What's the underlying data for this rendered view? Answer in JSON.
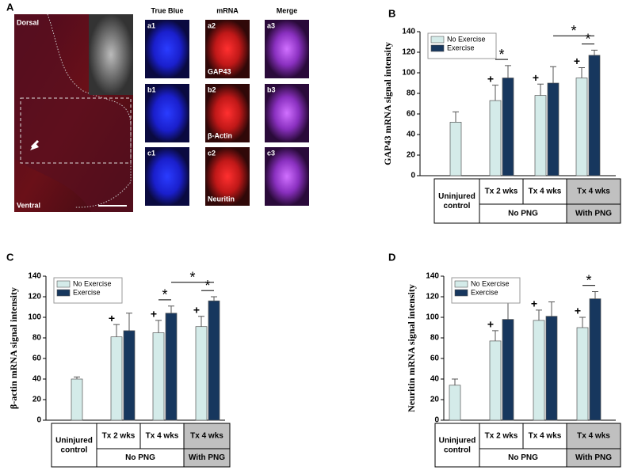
{
  "figure_a": {
    "panel": "A",
    "dorsal": "Dorsal",
    "ventral": "Ventral",
    "columns": [
      "True Blue",
      "mRNA",
      "Merge"
    ],
    "cells": [
      [
        "a1",
        "a2",
        "a3"
      ],
      [
        "b1",
        "b2",
        "b3"
      ],
      [
        "c1",
        "c2",
        "c3"
      ]
    ],
    "genes": [
      "GAP43",
      "β-Actin",
      "Neuritin"
    ]
  },
  "chart_data": [
    {
      "type": "bar",
      "panel": "B",
      "ylabel": "GAP43 mRNA  signal intensity",
      "categories": [
        "Uninjured control",
        "Tx 2 wks",
        "Tx 4 wks",
        "Tx 4 wks"
      ],
      "groups": [
        {
          "label": "No PNG",
          "span": [
            1,
            2
          ]
        },
        {
          "label": "With PNG",
          "span": [
            3,
            3
          ]
        }
      ],
      "ylim": [
        0,
        140
      ],
      "yticks": [
        0,
        20,
        40,
        60,
        80,
        100,
        120,
        140
      ],
      "legend": "upper left",
      "series": [
        {
          "name": "No Exercise",
          "color": "#d4ebe9",
          "values": [
            52,
            73,
            78,
            95
          ],
          "errors": [
            10,
            15,
            11,
            10
          ],
          "marks": [
            null,
            "+",
            "+",
            "+"
          ]
        },
        {
          "name": "Exercise",
          "color": "#17375e",
          "values": [
            null,
            95,
            90,
            117
          ],
          "errors": [
            null,
            12,
            16,
            5
          ]
        }
      ],
      "annotations": [
        {
          "text": "*",
          "groups": [
            1
          ]
        },
        {
          "text": "*",
          "groups": [
            3
          ]
        },
        {
          "text": "*",
          "groups": [
            2,
            3
          ]
        }
      ]
    },
    {
      "type": "bar",
      "panel": "C",
      "ylabel": "β-actin mRNA  signal intensity",
      "categories": [
        "Uninjured control",
        "Tx 2 wks",
        "Tx 4 wks",
        "Tx 4 wks"
      ],
      "groups": [
        {
          "label": "No PNG",
          "span": [
            1,
            2
          ]
        },
        {
          "label": "With PNG",
          "span": [
            3,
            3
          ]
        }
      ],
      "ylim": [
        0,
        140
      ],
      "yticks": [
        0,
        20,
        40,
        60,
        80,
        100,
        120,
        140
      ],
      "legend": "upper left",
      "series": [
        {
          "name": "No Exercise",
          "color": "#d4ebe9",
          "values": [
            40,
            81,
            85,
            91
          ],
          "errors": [
            2,
            12,
            12,
            10
          ],
          "marks": [
            null,
            "+",
            "+",
            "+"
          ]
        },
        {
          "name": "Exercise",
          "color": "#17375e",
          "values": [
            null,
            87,
            104,
            116
          ],
          "errors": [
            null,
            17,
            7,
            4
          ]
        }
      ],
      "annotations": [
        {
          "text": "*",
          "groups": [
            2
          ]
        },
        {
          "text": "*",
          "groups": [
            3
          ]
        },
        {
          "text": "*",
          "groups": [
            2,
            3
          ]
        }
      ]
    },
    {
      "type": "bar",
      "panel": "D",
      "ylabel": "Neuritin mRNA  signal intensity",
      "categories": [
        "Uninjured control",
        "Tx 2 wks",
        "Tx 4 wks",
        "Tx 4 wks"
      ],
      "groups": [
        {
          "label": "No PNG",
          "span": [
            1,
            2
          ]
        },
        {
          "label": "With PNG",
          "span": [
            3,
            3
          ]
        }
      ],
      "ylim": [
        0,
        140
      ],
      "yticks": [
        0,
        20,
        40,
        60,
        80,
        100,
        120,
        140
      ],
      "legend": "upper left",
      "series": [
        {
          "name": "No Exercise",
          "color": "#d4ebe9",
          "values": [
            34,
            77,
            97,
            90
          ],
          "errors": [
            6,
            10,
            10,
            10
          ],
          "marks": [
            null,
            "+",
            "+",
            "+"
          ]
        },
        {
          "name": "Exercise",
          "color": "#17375e",
          "values": [
            null,
            98,
            101,
            118
          ],
          "errors": [
            null,
            22,
            14,
            7
          ]
        }
      ],
      "annotations": [
        {
          "text": "*",
          "groups": [
            3
          ]
        }
      ]
    }
  ]
}
